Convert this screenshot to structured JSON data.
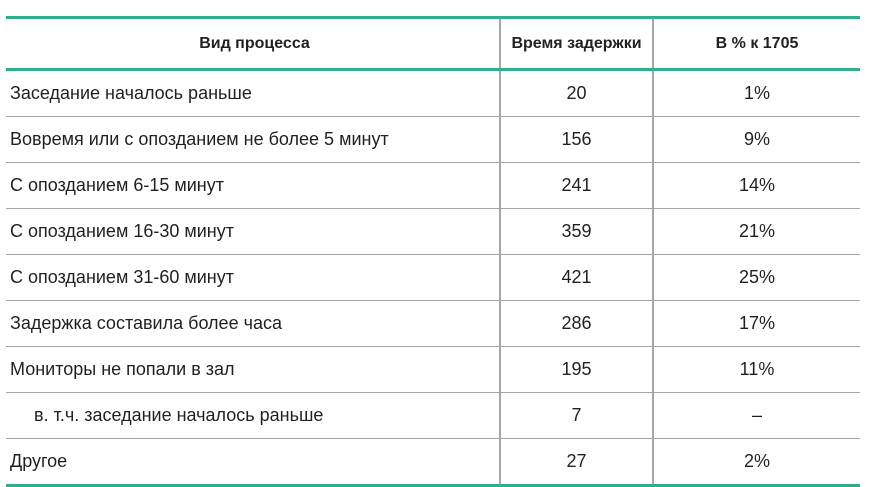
{
  "table": {
    "headers": [
      "Вид процесса",
      "Время задержки",
      "В % к 1705"
    ],
    "rows": [
      {
        "label": "Заседание началось раньше",
        "delay": "20",
        "percent": "1%"
      },
      {
        "label": "Вовремя или с опозданием не более 5 минут",
        "delay": "156",
        "percent": "9%"
      },
      {
        "label": "С опозданием 6-15 минут",
        "delay": "241",
        "percent": "14%"
      },
      {
        "label": "С опозданием 16-30 минут",
        "delay": "359",
        "percent": "21%"
      },
      {
        "label": "С опозданием 31-60 минут",
        "delay": "421",
        "percent": "25%"
      },
      {
        "label": "Задержка составила более часа",
        "delay": "286",
        "percent": "17%"
      },
      {
        "label": "Мониторы не попали в зал",
        "delay": "195",
        "percent": "11%"
      },
      {
        "label": "в. т.ч. заседание началось раньше",
        "delay": "7",
        "percent": "–"
      },
      {
        "label": "Другое",
        "delay": "27",
        "percent": "2%"
      }
    ],
    "accent_color": "#2fae8e"
  }
}
